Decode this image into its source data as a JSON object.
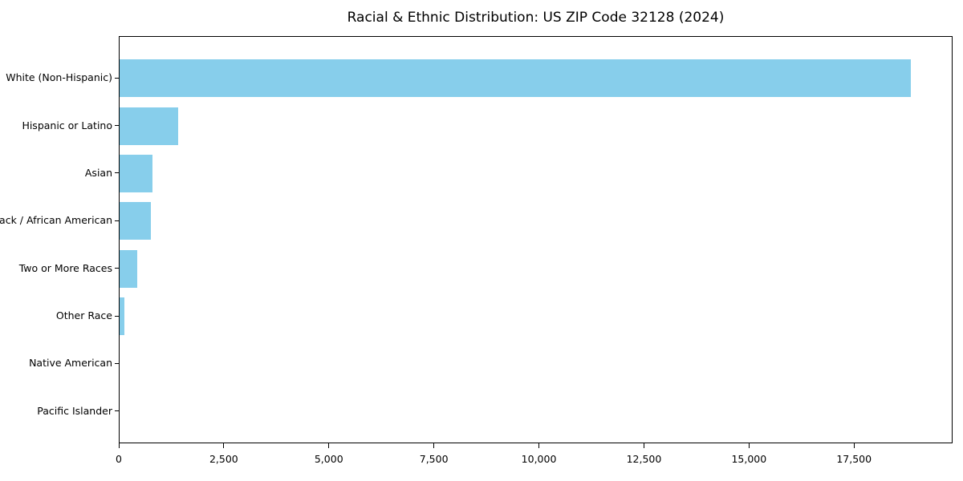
{
  "title": "Racial & Ethnic Distribution: US ZIP Code 32128 (2024)",
  "colors": {
    "bar": "#87CEEB",
    "axis": "#000000",
    "background": "#FFFFFF",
    "text": "#000000"
  },
  "chart_data": {
    "type": "bar",
    "orientation": "horizontal",
    "title": "Racial & Ethnic Distribution: US ZIP Code 32128 (2024)",
    "categories": [
      "White (Non-Hispanic)",
      "Hispanic or Latino",
      "Asian",
      "Black / African American",
      "Two or More Races",
      "Other Race",
      "Native American",
      "Pacific Islander"
    ],
    "values": [
      18870,
      1390,
      780,
      740,
      430,
      120,
      0,
      0
    ],
    "xlabel": "",
    "ylabel": "",
    "xlim": [
      0,
      19845
    ],
    "xticks": [
      0,
      2500,
      5000,
      7500,
      10000,
      12500,
      15000,
      17500
    ],
    "xtick_labels": [
      "0",
      "2,500",
      "5,000",
      "7,500",
      "10,000",
      "12,500",
      "15,000",
      "17,500"
    ],
    "grid": false,
    "legend": false,
    "bar_color": "#87CEEB"
  }
}
